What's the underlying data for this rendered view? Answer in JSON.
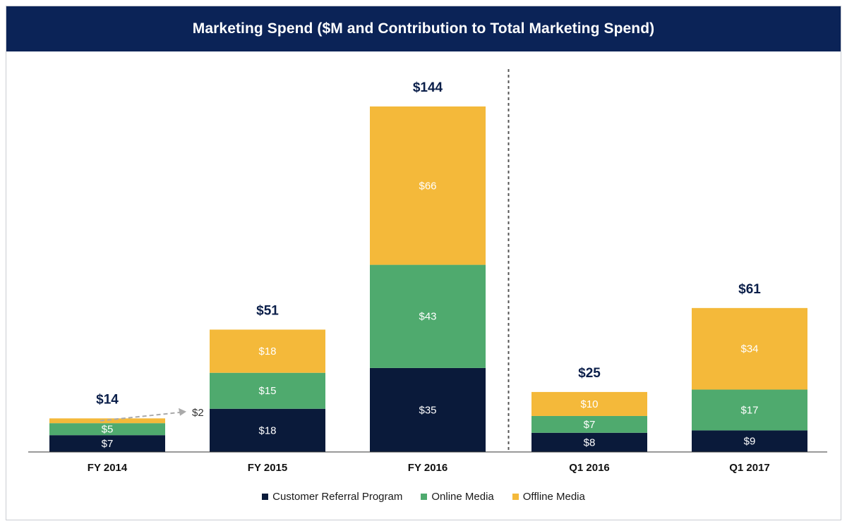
{
  "chart_data": {
    "type": "bar",
    "stacked": true,
    "title": "Marketing Spend ($M and Contribution to Total Marketing Spend)",
    "categories": [
      "FY 2014",
      "FY 2015",
      "FY 2016",
      "Q1 2016",
      "Q1 2017"
    ],
    "series": [
      {
        "name": "Customer Referral Program",
        "color": "#0a1a3a",
        "values": [
          7,
          18,
          35,
          8,
          9
        ],
        "labels": [
          "$7",
          "$18",
          "$35",
          "$8",
          "$9"
        ]
      },
      {
        "name": "Online Media",
        "color": "#4faa6e",
        "values": [
          5,
          15,
          43,
          7,
          17
        ],
        "labels": [
          "$5",
          "$15",
          "$43",
          "$7",
          "$17"
        ]
      },
      {
        "name": "Offline Media",
        "color": "#f4b93a",
        "values": [
          2,
          18,
          66,
          10,
          34
        ],
        "labels": [
          "",
          "$18",
          "$66",
          "$10",
          "$34"
        ]
      }
    ],
    "totals": [
      "$14",
      "$51",
      "$144",
      "$25",
      "$61"
    ],
    "annotations": [
      {
        "category": "FY 2014",
        "series": "Offline Media",
        "text": "$2",
        "style": "dashed-arrow"
      }
    ],
    "divider_after_category": "FY 2016",
    "legend_position": "bottom-center",
    "ylim": [
      0,
      144
    ],
    "xlabel": "",
    "ylabel": ""
  }
}
